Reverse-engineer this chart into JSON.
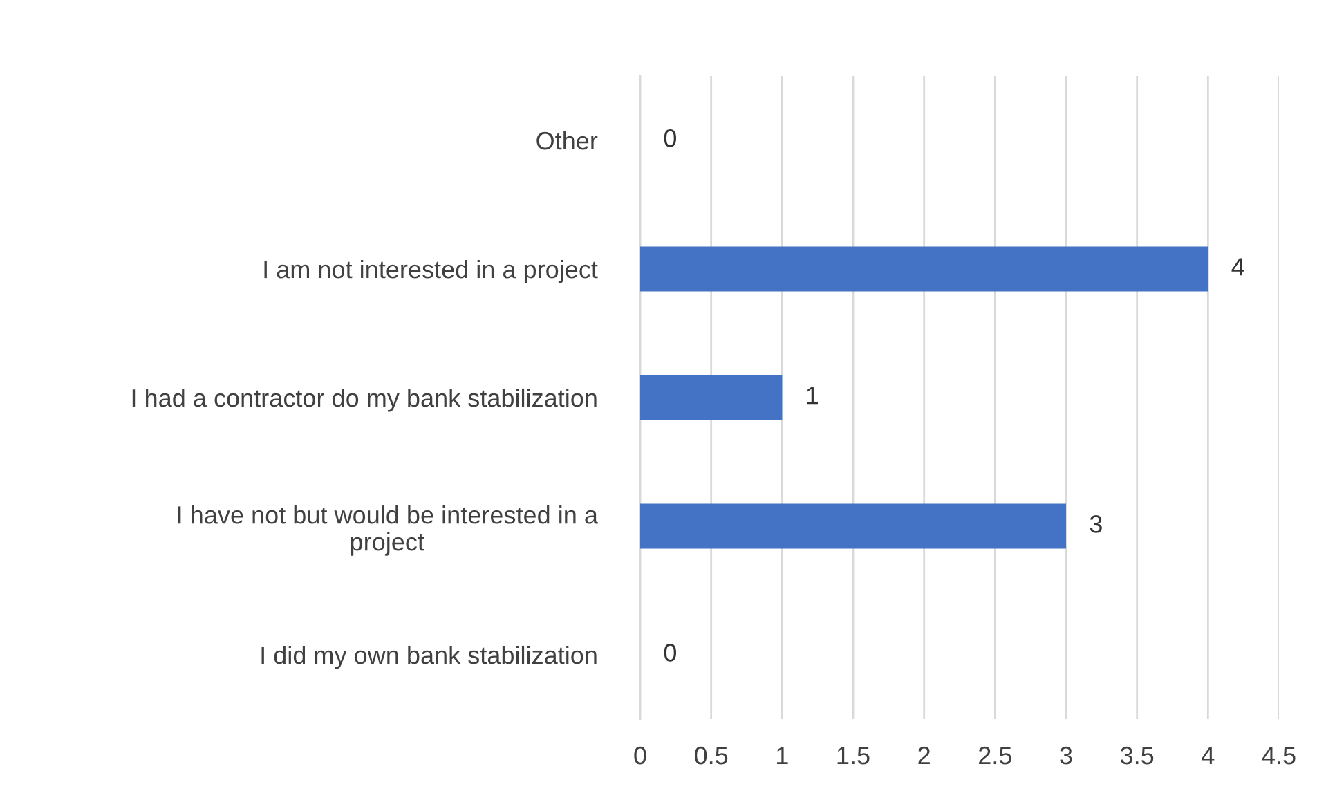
{
  "chart_data": {
    "type": "bar",
    "orientation": "horizontal",
    "categories": [
      "Other",
      "I am not interested in a project",
      "I had a contractor do my bank stabilization",
      "I have not but would be interested in a\nproject",
      "I did my own bank stabilization"
    ],
    "values": [
      0,
      4,
      1,
      3,
      0
    ],
    "color": "#4472c4",
    "data_labels": true,
    "xlim": [
      0,
      4.5
    ],
    "xticks": [
      0,
      0.5,
      1,
      1.5,
      2,
      2.5,
      3,
      3.5,
      4,
      4.5
    ],
    "grid": "x",
    "legend": false
  }
}
